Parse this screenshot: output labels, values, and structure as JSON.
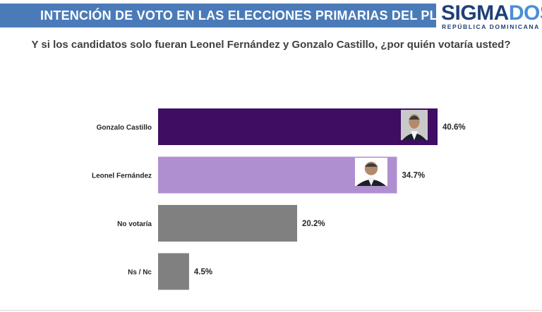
{
  "header": {
    "title": "INTENCIÓN DE VOTO EN LAS ELECCIONES PRIMARIAS DEL PLD"
  },
  "logo": {
    "name_part1": "SIGMA",
    "name_part2": "DOS",
    "tagline": "REPÚBLICA DOMINICANA"
  },
  "colors": {
    "header_band": "#4a7bb8",
    "gonzalo_castillo": "#3f0d62",
    "leonel_fernandez": "#b08fd1",
    "others": "#808080"
  },
  "chart_data": {
    "type": "bar",
    "orientation": "horizontal",
    "title": "Y si los candidatos solo fueran Leonel Fernández y Gonzalo Castillo, ¿por quién votaría usted?",
    "categories": [
      "Gonzalo Castillo",
      "Leonel Fernández",
      "No votaría",
      "Ns / Nc"
    ],
    "values": [
      40.6,
      34.7,
      20.2,
      4.5
    ],
    "value_labels": [
      "40.6%",
      "34.7%",
      "20.2%",
      "4.5%"
    ],
    "bar_colors": [
      "#3f0d62",
      "#b08fd1",
      "#808080",
      "#808080"
    ],
    "xlim": [
      0,
      48
    ],
    "grid": false,
    "legend": "none"
  }
}
